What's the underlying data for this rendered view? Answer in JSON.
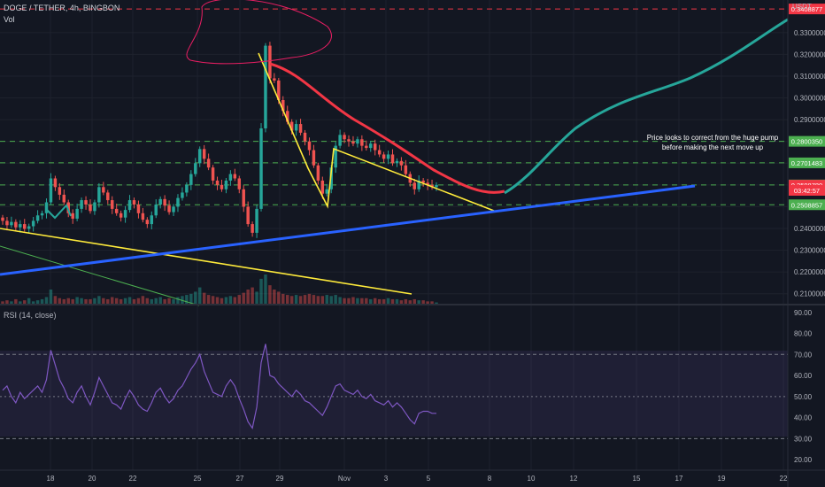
{
  "header": {
    "symbol": "DOGE / TETHER, 4h, BINGBON",
    "volume_label": "Vol",
    "currency": "USDT"
  },
  "rsi_label": "RSI (14, close)",
  "annotation": {
    "line1": "Price looks to correct from the huge pump",
    "line2": "before making the next move up"
  },
  "colors": {
    "background": "#131722",
    "up": "#26a69a",
    "down": "#ef5350",
    "grid": "#1e222d",
    "yellow_line": "#ffeb3b",
    "blue_line": "#2962ff",
    "green_projection": "#26a69a",
    "red_ma": "#f23645",
    "rsi_line": "#7e57c2",
    "dash_green": "#4caf50",
    "dash_red": "#f23645"
  },
  "chart_data": [
    {
      "type": "candlestick",
      "title": "DOGE / TETHER, 4h, BINGBON",
      "x_tick_labels": [
        "18",
        "20",
        "22",
        "25",
        "27",
        "29",
        "Nov",
        "3",
        "5",
        "8",
        "10",
        "12",
        "15",
        "17",
        "19",
        "22"
      ],
      "y_tick_labels": [
        "0.2100000",
        "0.2200000",
        "0.2300000",
        "0.2400000",
        "0.2500000",
        "0.2600000",
        "0.2700000",
        "0.2800000",
        "0.2900000",
        "0.3000000",
        "0.3100000",
        "0.3200000",
        "0.3300000"
      ],
      "ylim": [
        0.205,
        0.345
      ],
      "price_tags": [
        {
          "label": "0.3408877",
          "value": 0.3408877,
          "color": "#f23645"
        },
        {
          "label": "0.2800350",
          "value": 0.280035,
          "color": "#4caf50"
        },
        {
          "label": "0.2701483",
          "value": 0.2701483,
          "color": "#4caf50"
        },
        {
          "label": "0.2600075",
          "value": 0.2600075,
          "color": "#4caf50"
        },
        {
          "label": "0.2598780",
          "value": 0.259878,
          "color": "#f23645"
        },
        {
          "label": "03:42:57",
          "value": 0.2575,
          "color": "#f23645"
        },
        {
          "label": "0.2508857",
          "value": 0.2508857,
          "color": "#4caf50"
        }
      ],
      "horizontal_levels": [
        {
          "value": 0.3408877,
          "style": "dashed",
          "color": "#f23645"
        },
        {
          "value": 0.280035,
          "style": "dashed",
          "color": "#4caf50"
        },
        {
          "value": 0.2701483,
          "style": "dashed",
          "color": "#4caf50"
        },
        {
          "value": 0.2600075,
          "style": "dashed",
          "color": "#4caf50"
        },
        {
          "value": 0.2508857,
          "style": "dashed",
          "color": "#4caf50"
        }
      ],
      "closes": [
        0.2435,
        0.2415,
        0.243,
        0.2405,
        0.242,
        0.2398,
        0.241,
        0.2435,
        0.246,
        0.247,
        0.252,
        0.263,
        0.259,
        0.2555,
        0.252,
        0.247,
        0.2445,
        0.249,
        0.253,
        0.251,
        0.248,
        0.252,
        0.259,
        0.2565,
        0.253,
        0.249,
        0.247,
        0.245,
        0.2485,
        0.253,
        0.251,
        0.247,
        0.244,
        0.242,
        0.246,
        0.251,
        0.2535,
        0.2505,
        0.2475,
        0.25,
        0.254,
        0.2565,
        0.26,
        0.265,
        0.27,
        0.2765,
        0.272,
        0.268,
        0.262,
        0.26,
        0.258,
        0.262,
        0.265,
        0.263,
        0.258,
        0.25,
        0.242,
        0.238,
        0.249,
        0.286,
        0.324,
        0.309,
        0.308,
        0.299,
        0.294,
        0.289,
        0.285,
        0.288,
        0.284,
        0.28,
        0.276,
        0.269,
        0.262,
        0.256,
        0.258,
        0.268,
        0.278,
        0.283,
        0.281,
        0.28,
        0.279,
        0.281,
        0.278,
        0.277,
        0.279,
        0.276,
        0.274,
        0.272,
        0.274,
        0.27,
        0.271,
        0.269,
        0.265,
        0.261,
        0.258,
        0.262,
        0.261,
        0.26,
        0.259,
        0.26
      ],
      "series": [
        {
          "name": "Vol",
          "type": "bar",
          "values": [
            3,
            4,
            3,
            5,
            3,
            4,
            6,
            3,
            4,
            5,
            7,
            14,
            8,
            6,
            5,
            6,
            5,
            7,
            6,
            5,
            5,
            6,
            8,
            6,
            5,
            7,
            6,
            5,
            6,
            7,
            5,
            6,
            8,
            6,
            5,
            6,
            7,
            5,
            6,
            5,
            7,
            8,
            9,
            10,
            12,
            16,
            11,
            9,
            8,
            7,
            6,
            7,
            8,
            7,
            9,
            11,
            14,
            16,
            12,
            24,
            28,
            18,
            14,
            12,
            10,
            9,
            8,
            9,
            8,
            9,
            10,
            9,
            8,
            8,
            9,
            8,
            9,
            7,
            6,
            6,
            7,
            6,
            6,
            6,
            5,
            6,
            5,
            5,
            6,
            5,
            5,
            4,
            5,
            4,
            5,
            4,
            4,
            3,
            3,
            2
          ]
        },
        {
          "name": "RSI (14, close)",
          "type": "line",
          "ylim": [
            15,
            92
          ],
          "y_tick_labels": [
            "90.00",
            "80.00",
            "70.00",
            "60.00",
            "50.00",
            "40.00",
            "30.00",
            "20.00"
          ],
          "values": [
            53,
            55,
            50,
            47,
            52,
            49,
            51,
            53,
            55,
            52,
            58,
            72,
            65,
            58,
            54,
            49,
            47,
            52,
            55,
            50,
            46,
            52,
            59,
            55,
            51,
            47,
            46,
            44,
            49,
            53,
            50,
            46,
            44,
            43,
            47,
            52,
            54,
            50,
            47,
            49,
            53,
            55,
            59,
            63,
            66,
            70,
            62,
            57,
            52,
            51,
            50,
            55,
            58,
            55,
            49,
            44,
            38,
            35,
            45,
            66,
            75,
            60,
            59,
            56,
            54,
            52,
            50,
            53,
            51,
            48,
            47,
            45,
            43,
            41,
            45,
            50,
            55,
            56,
            53,
            52,
            51,
            53,
            50,
            49,
            51,
            48,
            47,
            46,
            48,
            45,
            47,
            45,
            42,
            39,
            37,
            42,
            43,
            43,
            42,
            42
          ]
        }
      ]
    }
  ]
}
